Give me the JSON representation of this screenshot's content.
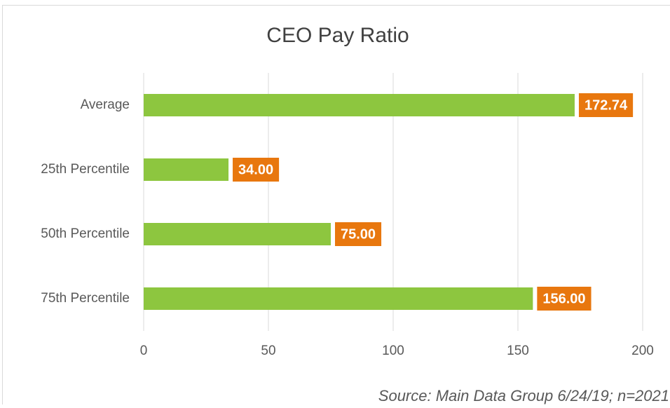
{
  "chart_data": {
    "type": "bar",
    "orientation": "horizontal",
    "title": "CEO Pay Ratio",
    "categories": [
      "Average",
      "25th Percentile",
      "50th Percentile",
      "75th Percentile"
    ],
    "values": [
      172.74,
      34,
      75,
      156
    ],
    "value_labels": [
      "172.74",
      "34.00",
      "75.00",
      "156.00"
    ],
    "color": "#8dc63f",
    "label_color": "#e8770e",
    "xlim": [
      0,
      200
    ],
    "xticks": [
      0,
      50,
      100,
      150,
      200
    ],
    "grid": true,
    "annotation": "Source: Main Data Group 6/24/19; n=2021"
  }
}
